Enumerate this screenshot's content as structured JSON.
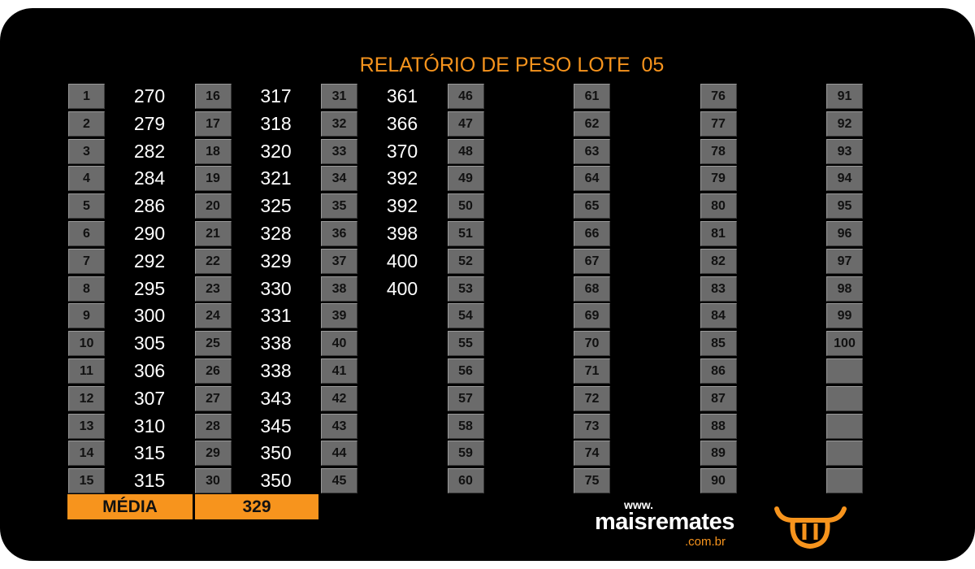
{
  "title": "RELATÓRIO DE PESO LOTE  05",
  "groups": [
    {
      "numbers": [
        1,
        2,
        3,
        4,
        5,
        6,
        7,
        8,
        9,
        10,
        11,
        12,
        13,
        14,
        15
      ],
      "weights": [
        270,
        279,
        282,
        284,
        286,
        290,
        292,
        295,
        300,
        305,
        306,
        307,
        310,
        315,
        315
      ]
    },
    {
      "numbers": [
        16,
        17,
        18,
        19,
        20,
        21,
        22,
        23,
        24,
        25,
        26,
        27,
        28,
        29,
        30
      ],
      "weights": [
        317,
        318,
        320,
        321,
        325,
        328,
        329,
        330,
        331,
        338,
        338,
        343,
        345,
        350,
        350
      ]
    },
    {
      "numbers": [
        31,
        32,
        33,
        34,
        35,
        36,
        37,
        38,
        39,
        40,
        41,
        42,
        43,
        44,
        45
      ],
      "weights": [
        361,
        366,
        370,
        392,
        392,
        398,
        400,
        400
      ]
    },
    {
      "numbers": [
        46,
        47,
        48,
        49,
        50,
        51,
        52,
        53,
        54,
        55,
        56,
        57,
        58,
        59,
        60
      ],
      "weights": []
    },
    {
      "numbers": [
        61,
        62,
        63,
        64,
        65,
        66,
        67,
        68,
        69,
        70,
        71,
        72,
        73,
        74,
        75
      ],
      "weights": []
    },
    {
      "numbers": [
        76,
        77,
        78,
        79,
        80,
        81,
        82,
        83,
        84,
        85,
        86,
        87,
        88,
        89,
        90
      ],
      "weights": []
    },
    {
      "numbers": [
        91,
        92,
        93,
        94,
        95,
        96,
        97,
        98,
        99,
        100
      ],
      "weights": []
    }
  ],
  "average": {
    "label": "MÉDIA",
    "value": 329
  },
  "logo": {
    "prefix": "www.",
    "name": "maisremates",
    "suffix": ".com.br"
  }
}
